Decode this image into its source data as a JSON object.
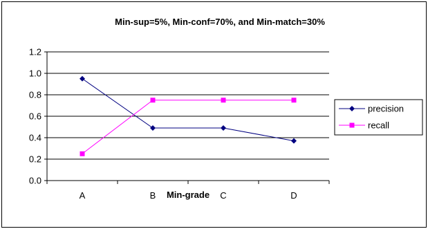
{
  "chart_data": {
    "type": "line",
    "title": "Min-sup=5%, Min-conf=70%, and Min-match=30%",
    "xlabel": "Min-grade",
    "ylabel": "",
    "categories": [
      "A",
      "B",
      "C",
      "D"
    ],
    "ylim": [
      0.0,
      1.2
    ],
    "yticks": [
      "0.0",
      "0.2",
      "0.4",
      "0.6",
      "0.8",
      "1.0",
      "1.2"
    ],
    "grid": true,
    "legend_position": "right",
    "series": [
      {
        "name": "precision",
        "values": [
          0.95,
          0.49,
          0.49,
          0.37
        ],
        "color": "#000080",
        "marker": "diamond"
      },
      {
        "name": "recall",
        "values": [
          0.25,
          0.75,
          0.75,
          0.75
        ],
        "color": "#ff00ff",
        "marker": "square"
      }
    ]
  }
}
